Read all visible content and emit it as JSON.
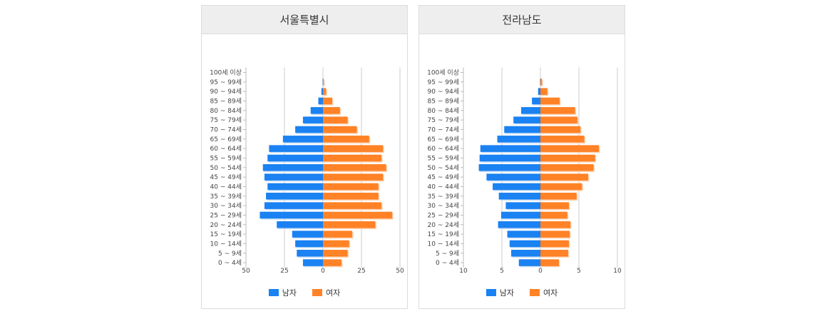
{
  "colors": {
    "male": "#1a82f2",
    "female": "#ff8226",
    "grid": "#cccccc"
  },
  "legend": {
    "male": "남자",
    "female": "여자"
  },
  "age_groups": [
    "100세 이상",
    "95 ~ 99세",
    "90 ~ 94세",
    "85 ~ 89세",
    "80 ~ 84세",
    "75 ~ 79세",
    "70 ~ 74세",
    "65 ~ 69세",
    "60 ~ 64세",
    "55 ~ 59세",
    "50 ~ 54세",
    "45 ~ 49세",
    "40 ~ 44세",
    "35 ~ 39세",
    "30 ~ 34세",
    "25 ~ 29세",
    "20 ~ 24세",
    "15 ~ 19세",
    "10 ~ 14세",
    "5 ~ 9세",
    "0 ~ 4세"
  ],
  "chart_data": [
    {
      "type": "bar",
      "title": "서울특별시",
      "categories": [
        "100세 이상",
        "95 ~ 99세",
        "90 ~ 94세",
        "85 ~ 89세",
        "80 ~ 84세",
        "75 ~ 79세",
        "70 ~ 74세",
        "65 ~ 69세",
        "60 ~ 64세",
        "55 ~ 59세",
        "50 ~ 54세",
        "45 ~ 49세",
        "40 ~ 44세",
        "35 ~ 39세",
        "30 ~ 34세",
        "25 ~ 29세",
        "20 ~ 24세",
        "15 ~ 19세",
        "10 ~ 14세",
        "5 ~ 9세",
        "0 ~ 4세"
      ],
      "series": [
        {
          "name": "남자",
          "values": [
            0,
            0.2,
            1,
            3,
            8,
            13,
            18,
            26,
            35,
            36,
            39,
            38,
            36,
            37,
            38,
            41,
            30,
            20,
            18,
            17,
            13
          ]
        },
        {
          "name": "여자",
          "values": [
            0,
            0.5,
            2,
            6,
            11,
            16,
            22,
            30,
            39,
            38,
            41,
            39,
            36,
            36,
            38,
            45,
            34,
            19,
            17,
            16,
            12
          ]
        }
      ],
      "xlim": [
        -50,
        50
      ],
      "xticks": [
        {
          "value": -50,
          "label": "50"
        },
        {
          "value": -25,
          "label": "25"
        },
        {
          "value": 0,
          "label": "0"
        },
        {
          "value": 25,
          "label": "25"
        },
        {
          "value": 50,
          "label": "50"
        }
      ],
      "grid": true,
      "legend": "bottom"
    },
    {
      "type": "bar",
      "title": "전라남도",
      "categories": [
        "100세 이상",
        "95 ~ 99세",
        "90 ~ 94세",
        "85 ~ 89세",
        "80 ~ 84세",
        "75 ~ 79세",
        "70 ~ 74세",
        "65 ~ 69세",
        "60 ~ 64세",
        "55 ~ 59세",
        "50 ~ 54세",
        "45 ~ 49세",
        "40 ~ 44세",
        "35 ~ 39세",
        "30 ~ 34세",
        "25 ~ 29세",
        "20 ~ 24세",
        "15 ~ 19세",
        "10 ~ 14세",
        "5 ~ 9세",
        "0 ~ 4세"
      ],
      "series": [
        {
          "name": "남자",
          "values": [
            0,
            0.05,
            0.3,
            1.1,
            2.5,
            3.5,
            4.7,
            5.6,
            7.8,
            7.9,
            8.0,
            7.0,
            6.2,
            5.4,
            4.5,
            5.1,
            5.5,
            4.3,
            4.0,
            3.8,
            2.8
          ]
        },
        {
          "name": "여자",
          "values": [
            0,
            0.2,
            0.9,
            2.5,
            4.5,
            4.8,
            5.2,
            5.7,
            7.6,
            7.1,
            6.9,
            6.2,
            5.4,
            4.7,
            3.7,
            3.5,
            3.9,
            3.8,
            3.7,
            3.6,
            2.4
          ]
        }
      ],
      "xlim": [
        -10,
        10
      ],
      "xticks": [
        {
          "value": -10,
          "label": "10"
        },
        {
          "value": -5,
          "label": "5"
        },
        {
          "value": 0,
          "label": "0"
        },
        {
          "value": 5,
          "label": "5"
        },
        {
          "value": 10,
          "label": "10"
        }
      ],
      "grid": true,
      "legend": "bottom"
    }
  ]
}
